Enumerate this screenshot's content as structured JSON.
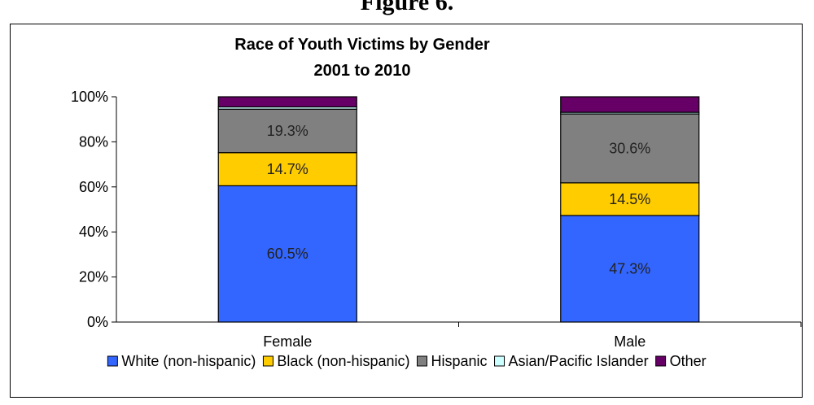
{
  "figure_label": "Figure 6.",
  "chart_data": {
    "type": "bar",
    "stacked": true,
    "title": "Race of Youth Victims by Gender",
    "subtitle": "2001 to 2010",
    "categories": [
      "Female",
      "Male"
    ],
    "ylim": [
      0,
      100
    ],
    "yticks": [
      "0%",
      "20%",
      "40%",
      "60%",
      "80%",
      "100%"
    ],
    "series": [
      {
        "name": "White (non-hispanic)",
        "color": "#3366FF",
        "values": [
          60.5,
          47.3
        ],
        "labels": [
          "60.5%",
          "47.3%"
        ]
      },
      {
        "name": "Black (non-hispanic)",
        "color": "#FFCC00",
        "values": [
          14.7,
          14.5
        ],
        "labels": [
          "14.7%",
          "14.5%"
        ]
      },
      {
        "name": "Hispanic",
        "color": "#808080",
        "values": [
          19.3,
          30.6
        ],
        "labels": [
          "19.3%",
          "30.6%"
        ]
      },
      {
        "name": "Asian/Pacific Islander",
        "color": "#CCFFFF",
        "values": [
          1.0,
          0.7
        ],
        "labels": [
          "",
          ""
        ]
      },
      {
        "name": "Other",
        "color": "#660066",
        "values": [
          4.5,
          6.9
        ],
        "labels": [
          "",
          ""
        ]
      }
    ],
    "legend_position": "bottom",
    "grid": false
  }
}
